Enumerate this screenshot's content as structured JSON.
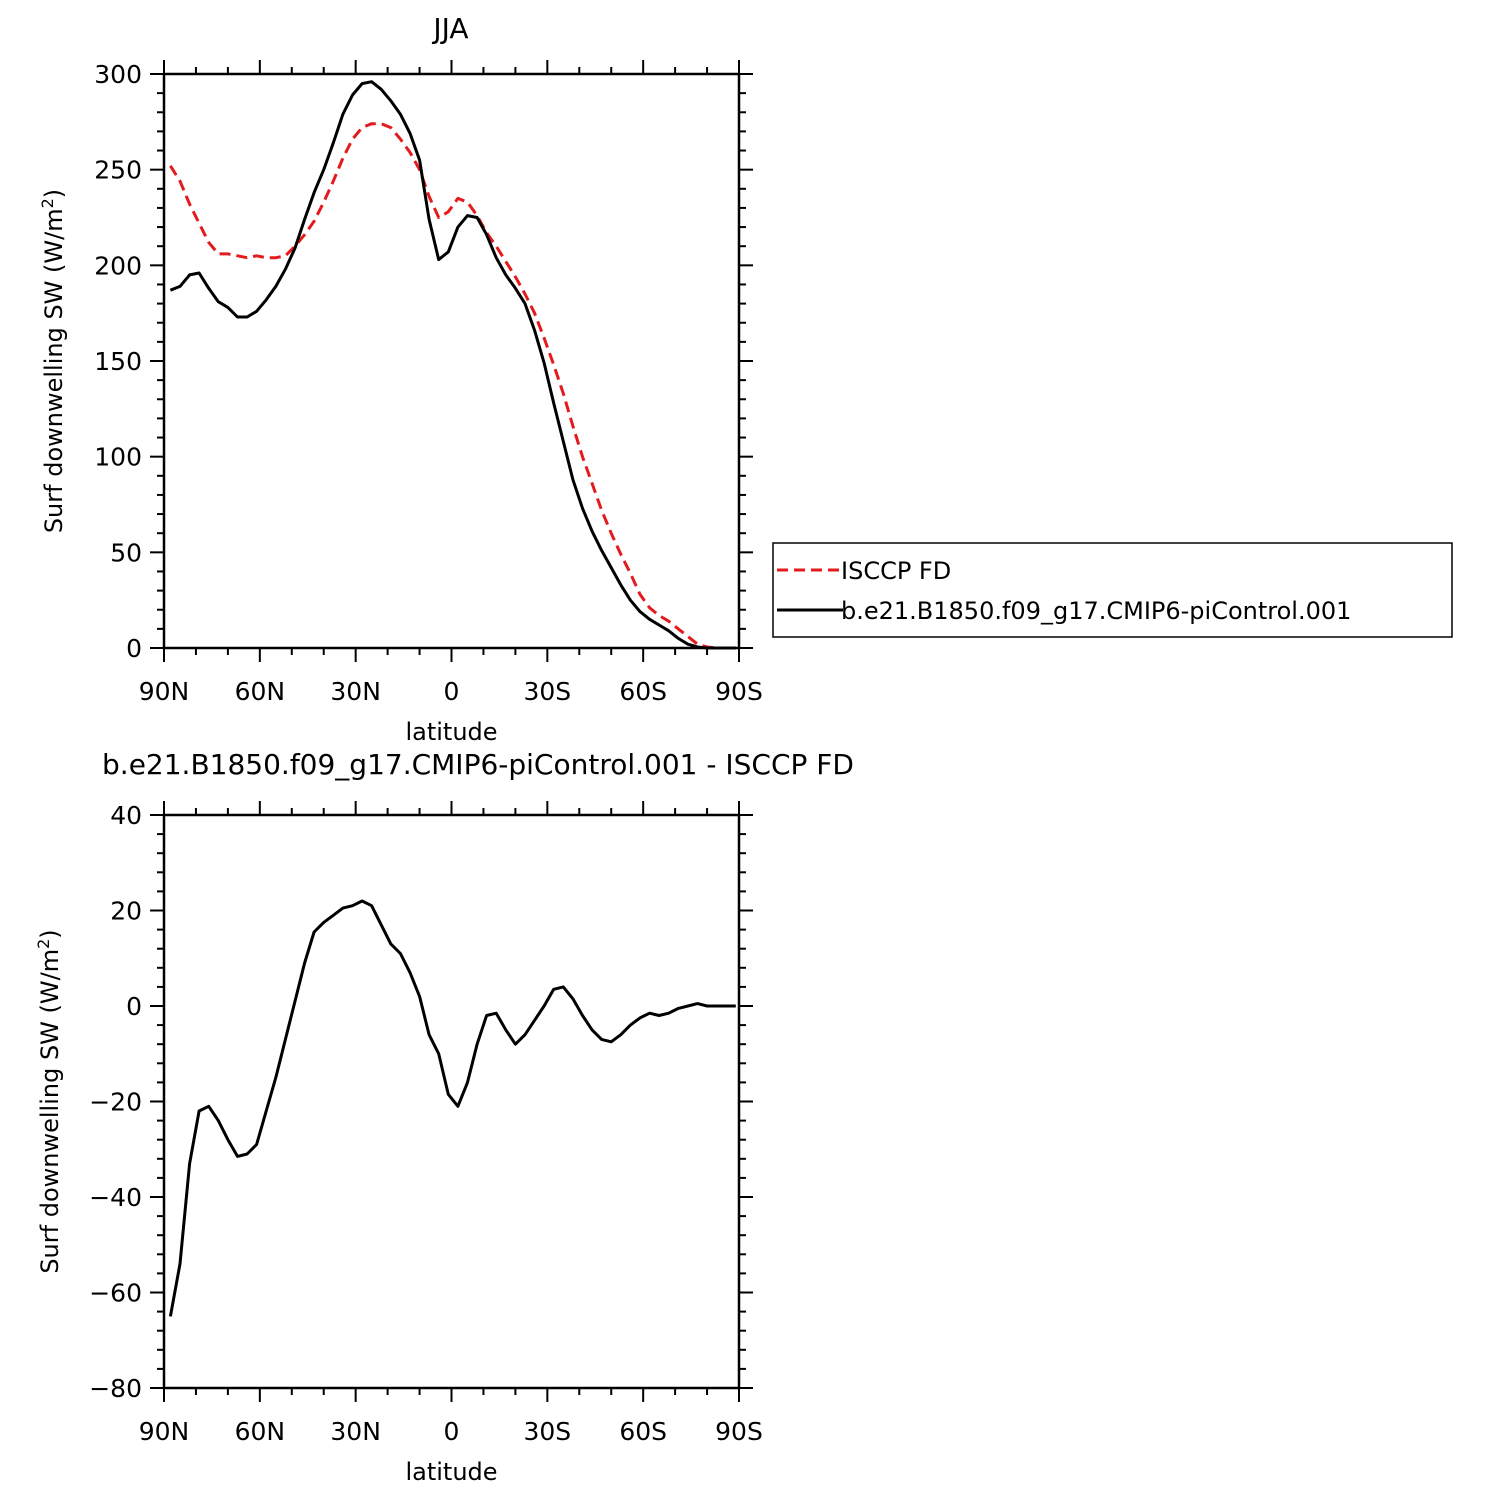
{
  "chart_data": [
    {
      "type": "line",
      "title": "JJA",
      "xlabel": "latitude",
      "ylabel_main": "Surf downwelling SW (W/m",
      "ylabel_sup": "2",
      "ylabel_tail": ")",
      "xlim": [
        90,
        -90
      ],
      "ylim": [
        0,
        300
      ],
      "yticks": [
        0,
        50,
        100,
        150,
        200,
        250,
        300
      ],
      "ytick_labels": [
        "0",
        "50",
        "100",
        "150",
        "200",
        "250",
        "300"
      ],
      "xticks": [
        90,
        60,
        30,
        0,
        -30,
        -60,
        -90
      ],
      "xtick_labels": [
        "90N",
        "60N",
        "30N",
        "0",
        "30S",
        "60S",
        "90S"
      ],
      "legend_position": "right",
      "series": [
        {
          "name": "ISCCP FD",
          "color": "#e41a1c",
          "dash": "dashed",
          "x": [
            88,
            85,
            82,
            79,
            76,
            73,
            70,
            67,
            64,
            61,
            58,
            55,
            52,
            49,
            46,
            43,
            40,
            37,
            34,
            31,
            28,
            25,
            22,
            19,
            16,
            13,
            10,
            7,
            4,
            1,
            -2,
            -5,
            -8,
            -11,
            -14,
            -17,
            -20,
            -23,
            -26,
            -29,
            -32,
            -35,
            -38,
            -41,
            -44,
            -47,
            -50,
            -53,
            -56,
            -59,
            -62,
            -65,
            -68,
            -71,
            -74,
            -77,
            -80,
            -83,
            -86,
            -89
          ],
          "values": [
            252,
            244,
            232,
            222,
            212,
            206,
            206,
            205,
            204,
            205,
            204,
            204,
            205,
            210,
            216,
            223,
            233,
            244,
            256,
            266,
            272,
            274,
            274,
            272,
            266,
            259,
            250,
            236,
            225,
            228,
            235,
            233,
            226,
            217,
            210,
            202,
            194,
            185,
            175,
            162,
            148,
            133,
            116,
            100,
            86,
            72,
            60,
            49,
            39,
            28,
            21,
            17,
            14,
            10,
            6,
            2,
            0.5,
            0,
            0,
            0
          ]
        },
        {
          "name": "b.e21.B1850.f09_g17.CMIP6-piControl.001",
          "color": "#000000",
          "dash": "solid",
          "x": [
            88,
            85,
            82,
            79,
            76,
            73,
            70,
            67,
            64,
            61,
            58,
            55,
            52,
            49,
            46,
            43,
            40,
            37,
            34,
            31,
            28,
            25,
            22,
            19,
            16,
            13,
            10,
            7,
            4,
            1,
            -2,
            -5,
            -8,
            -11,
            -14,
            -17,
            -20,
            -23,
            -26,
            -29,
            -32,
            -35,
            -38,
            -41,
            -44,
            -47,
            -50,
            -53,
            -56,
            -59,
            -62,
            -65,
            -68,
            -71,
            -74,
            -77,
            -80,
            -83,
            -86,
            -89
          ],
          "values": [
            187,
            189,
            195,
            196,
            188,
            181,
            178,
            173,
            173,
            176,
            182,
            189,
            198,
            209,
            224,
            238,
            250,
            264,
            279,
            289,
            295,
            296,
            292,
            286,
            279,
            269,
            255,
            224,
            203,
            207,
            220,
            226,
            225,
            216,
            204,
            195,
            188,
            180,
            166,
            149,
            128,
            108,
            88,
            73,
            61,
            51,
            42,
            33,
            25,
            19,
            15,
            12,
            9,
            5,
            2,
            0.5,
            0,
            0,
            0,
            0
          ]
        }
      ]
    },
    {
      "type": "line",
      "title": "b.e21.B1850.f09_g17.CMIP6-piControl.001 - ISCCP FD",
      "xlabel": "latitude",
      "ylabel_main": "Surf downwelling SW (W/m",
      "ylabel_sup": "2",
      "ylabel_tail": ")",
      "xlim": [
        90,
        -90
      ],
      "ylim": [
        -80,
        40
      ],
      "yticks": [
        -80,
        -60,
        -40,
        -20,
        0,
        20,
        40
      ],
      "ytick_labels": [
        "−80",
        "−60",
        "−40",
        "−20",
        "0",
        "20",
        "40"
      ],
      "xticks": [
        90,
        60,
        30,
        0,
        -30,
        -60,
        -90
      ],
      "xtick_labels": [
        "90N",
        "60N",
        "30N",
        "0",
        "30S",
        "60S",
        "90S"
      ],
      "series": [
        {
          "name": "",
          "color": "#000000",
          "dash": "solid",
          "x": [
            88,
            85,
            82,
            79,
            76,
            73,
            70,
            67,
            64,
            61,
            58,
            55,
            52,
            49,
            46,
            43,
            40,
            37,
            34,
            31,
            28,
            25,
            22,
            19,
            16,
            13,
            10,
            7,
            4,
            1,
            -2,
            -5,
            -8,
            -11,
            -14,
            -17,
            -20,
            -23,
            -26,
            -29,
            -32,
            -35,
            -38,
            -41,
            -44,
            -47,
            -50,
            -53,
            -56,
            -59,
            -62,
            -65,
            -68,
            -71,
            -74,
            -77,
            -80,
            -83,
            -86,
            -89
          ],
          "values": [
            -65,
            -54,
            -33,
            -22,
            -21,
            -24,
            -28,
            -31.5,
            -31,
            -29,
            -22,
            -15,
            -7,
            1,
            9,
            15.5,
            17.5,
            19,
            20.5,
            21,
            22,
            21,
            17,
            13,
            11,
            7,
            2,
            -6,
            -10,
            -18.5,
            -21,
            -16,
            -8,
            -2,
            -1.5,
            -5,
            -8,
            -6,
            -3,
            0,
            3.5,
            4,
            1.5,
            -2,
            -5,
            -7,
            -7.5,
            -6,
            -4,
            -2.5,
            -1.5,
            -2,
            -1.5,
            -0.5,
            0,
            0.5,
            0,
            0,
            0,
            0
          ]
        }
      ]
    }
  ]
}
